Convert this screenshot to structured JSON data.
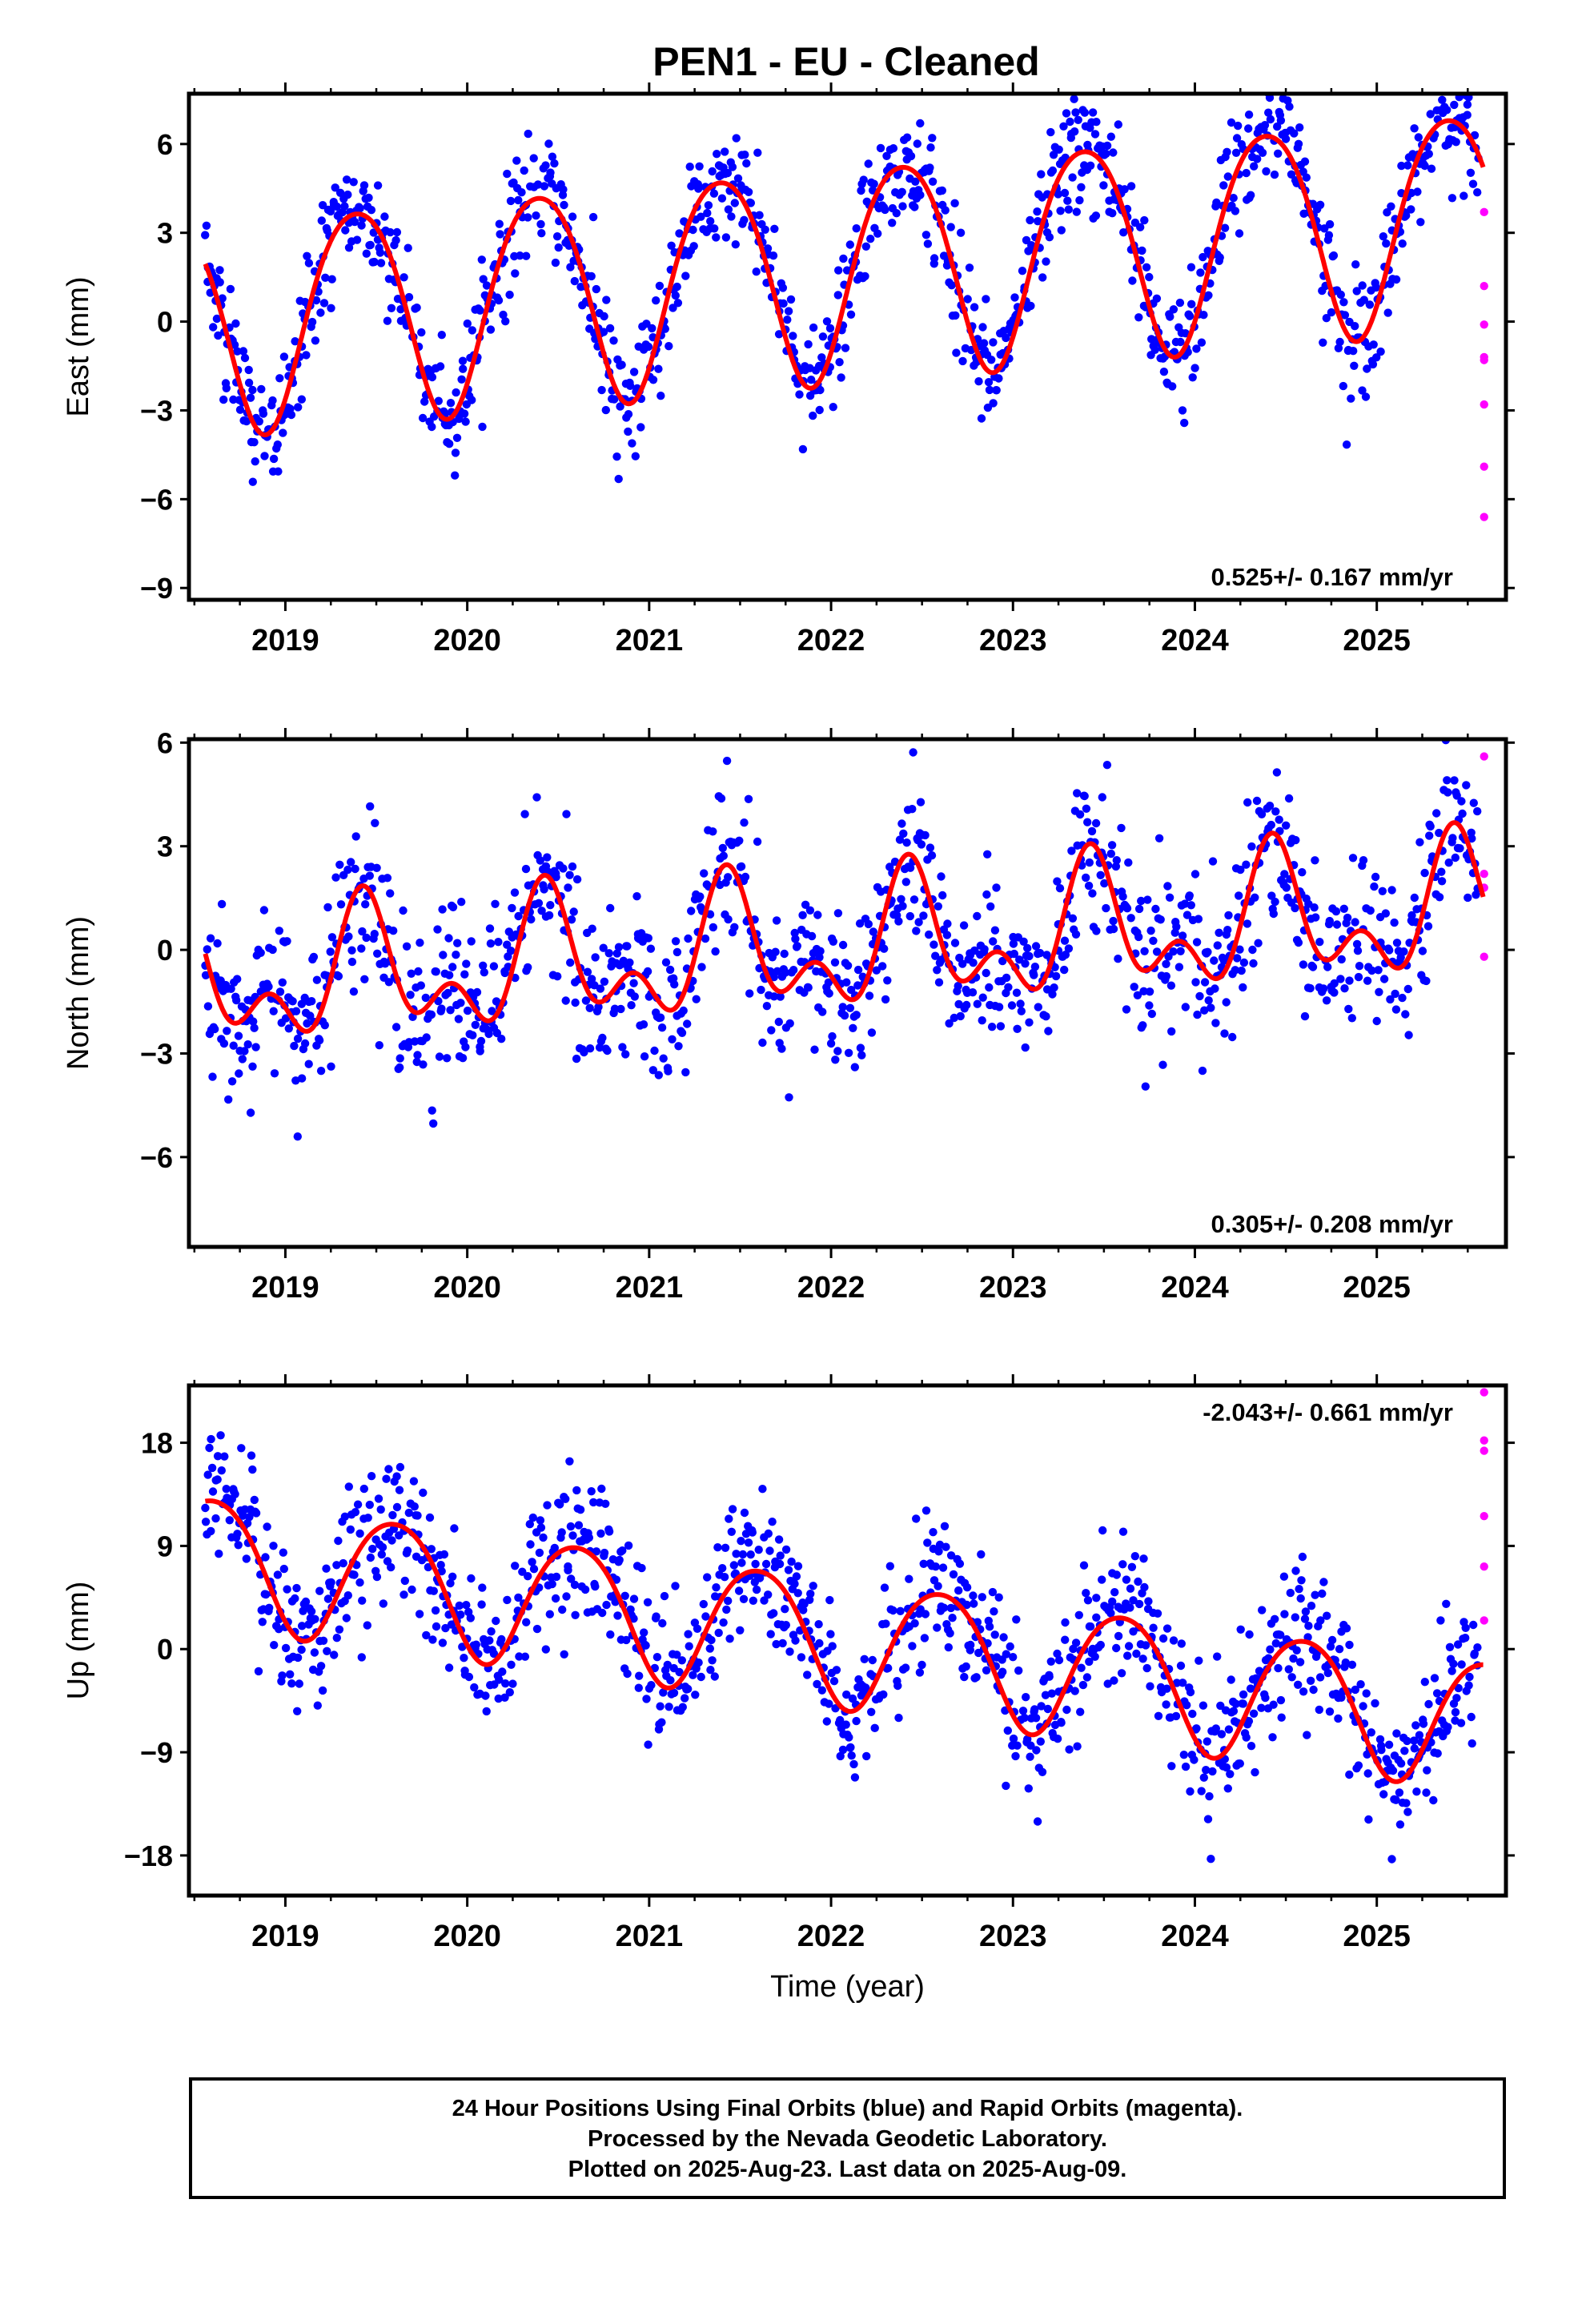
{
  "title": "PEN1  - EU - Cleaned",
  "footer": {
    "line1": "24 Hour Positions Using Final Orbits (blue) and Rapid Orbits (magenta).",
    "line2": "Processed by the Nevada Geodetic Laboratory.",
    "line3": "Plotted on 2025-Aug-23. Last data on 2025-Aug-09."
  },
  "colors": {
    "final_orbits": "#0000ff",
    "rapid_orbits": "#ff00ff",
    "model": "#ff0000",
    "frame": "#000000"
  },
  "chart_data": [
    {
      "type": "scatter",
      "component": "East",
      "ylabel": "East (mm)",
      "xlabel": "",
      "xlim": [
        2018.47,
        2025.71
      ],
      "ylim": [
        -9.4,
        7.7
      ],
      "yticks": [
        -9,
        -6,
        -3,
        0,
        3,
        6
      ],
      "ytick_labels": [
        "−9",
        "−6",
        "−3",
        "0",
        "3",
        "6"
      ],
      "xticks": [
        2019,
        2020,
        2021,
        2022,
        2023,
        2024,
        2025
      ],
      "xtick_labels": [
        "2019",
        "2020",
        "2021",
        "2022",
        "2023",
        "2024",
        "2025"
      ],
      "rate_label": "0.525+/- 0.167 mm/yr",
      "rate_position": "bottom-right",
      "model": {
        "t0": 2018.56,
        "offset": 0.0,
        "rate": 0.525,
        "annual_amplitude": 3.6,
        "annual_peak": 2019.39,
        "semiannual_amplitude": 0.4,
        "semiannual_peak": 2019.14
      },
      "final_scatter": {
        "start": 2018.56,
        "end": 2025.56,
        "step": 0.0055,
        "spread": 1.0
      },
      "rapid_points": {
        "x": [
          2025.59,
          2025.59,
          2025.59,
          2025.59,
          2025.59,
          2025.59,
          2025.59,
          2025.59
        ],
        "y": [
          3.7,
          1.2,
          -0.1,
          -1.2,
          -1.3,
          -2.8,
          -4.9,
          -6.6
        ]
      }
    },
    {
      "type": "scatter",
      "component": "North",
      "ylabel": "North (mm)",
      "xlabel": "",
      "xlim": [
        2018.47,
        2025.71
      ],
      "ylim": [
        -8.6,
        6.1
      ],
      "yticks": [
        -6,
        -3,
        0,
        3,
        6
      ],
      "ytick_labels": [
        "−6",
        "−3",
        "0",
        "3",
        "6"
      ],
      "xticks": [
        2019,
        2020,
        2021,
        2022,
        2023,
        2024,
        2025
      ],
      "xtick_labels": [
        "2019",
        "2020",
        "2021",
        "2022",
        "2023",
        "2024",
        "2025"
      ],
      "rate_label": "0.305+/- 0.208 mm/yr",
      "rate_position": "bottom-right",
      "model": {
        "t0": 2018.56,
        "offset": -1.0,
        "rate": 0.305,
        "annual_amplitude": 1.5,
        "annual_peak": 2019.44,
        "semiannual_amplitude": 1.1,
        "semiannual_peak": 2019.42
      },
      "final_scatter": {
        "start": 2018.56,
        "end": 2025.56,
        "step": 0.0055,
        "spread": 1.2
      },
      "rapid_points": {
        "x": [
          2025.59,
          2025.59,
          2025.59,
          2025.59
        ],
        "y": [
          5.6,
          2.2,
          1.8,
          -0.2
        ]
      }
    },
    {
      "type": "scatter",
      "component": "Up",
      "ylabel": "Up (mm)",
      "xlabel": "Time (year)",
      "xlim": [
        2018.47,
        2025.71
      ],
      "ylim": [
        -21.5,
        23.0
      ],
      "yticks": [
        -18,
        -9,
        0,
        9,
        18
      ],
      "ytick_labels": [
        "−18",
        "−9",
        "0",
        "9",
        "18"
      ],
      "xticks": [
        2019,
        2020,
        2021,
        2022,
        2023,
        2024,
        2025
      ],
      "xtick_labels": [
        "2019",
        "2020",
        "2021",
        "2022",
        "2023",
        "2024",
        "2025"
      ],
      "rate_label": "-2.043+/- 0.661 mm/yr",
      "rate_position": "top-right",
      "model": {
        "t0": 2018.56,
        "offset": 8.0,
        "rate": -2.043,
        "annual_amplitude": 5.6,
        "annual_peak": 2019.6,
        "semiannual_amplitude": 0.6,
        "semiannual_peak": 2019.35
      },
      "final_scatter": {
        "start": 2018.56,
        "end": 2025.56,
        "step": 0.0055,
        "spread": 3.2
      },
      "rapid_points": {
        "x": [
          2025.59,
          2025.59,
          2025.59,
          2025.59,
          2025.59,
          2025.59
        ],
        "y": [
          22.4,
          18.2,
          17.3,
          11.6,
          7.2,
          2.5
        ]
      }
    }
  ]
}
